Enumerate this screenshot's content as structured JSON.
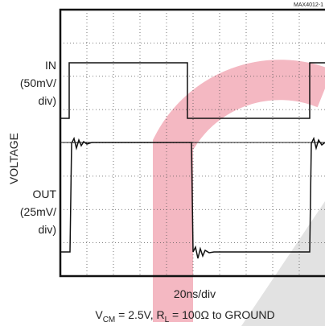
{
  "chart_data": {
    "type": "scope-capture",
    "figure_id": "MAX4012-1",
    "traces": [
      {
        "name": "IN",
        "scale": [
          "(50mV/",
          "div)"
        ]
      },
      {
        "name": "OUT",
        "scale": [
          "(25mV/",
          "div)"
        ]
      }
    ],
    "y_label": "VOLTAGE",
    "x_label": "20ns/div",
    "conditions": [
      "V",
      "CM",
      " = 2.5V, R",
      "L",
      " = 100Ω to GROUND"
    ]
  }
}
